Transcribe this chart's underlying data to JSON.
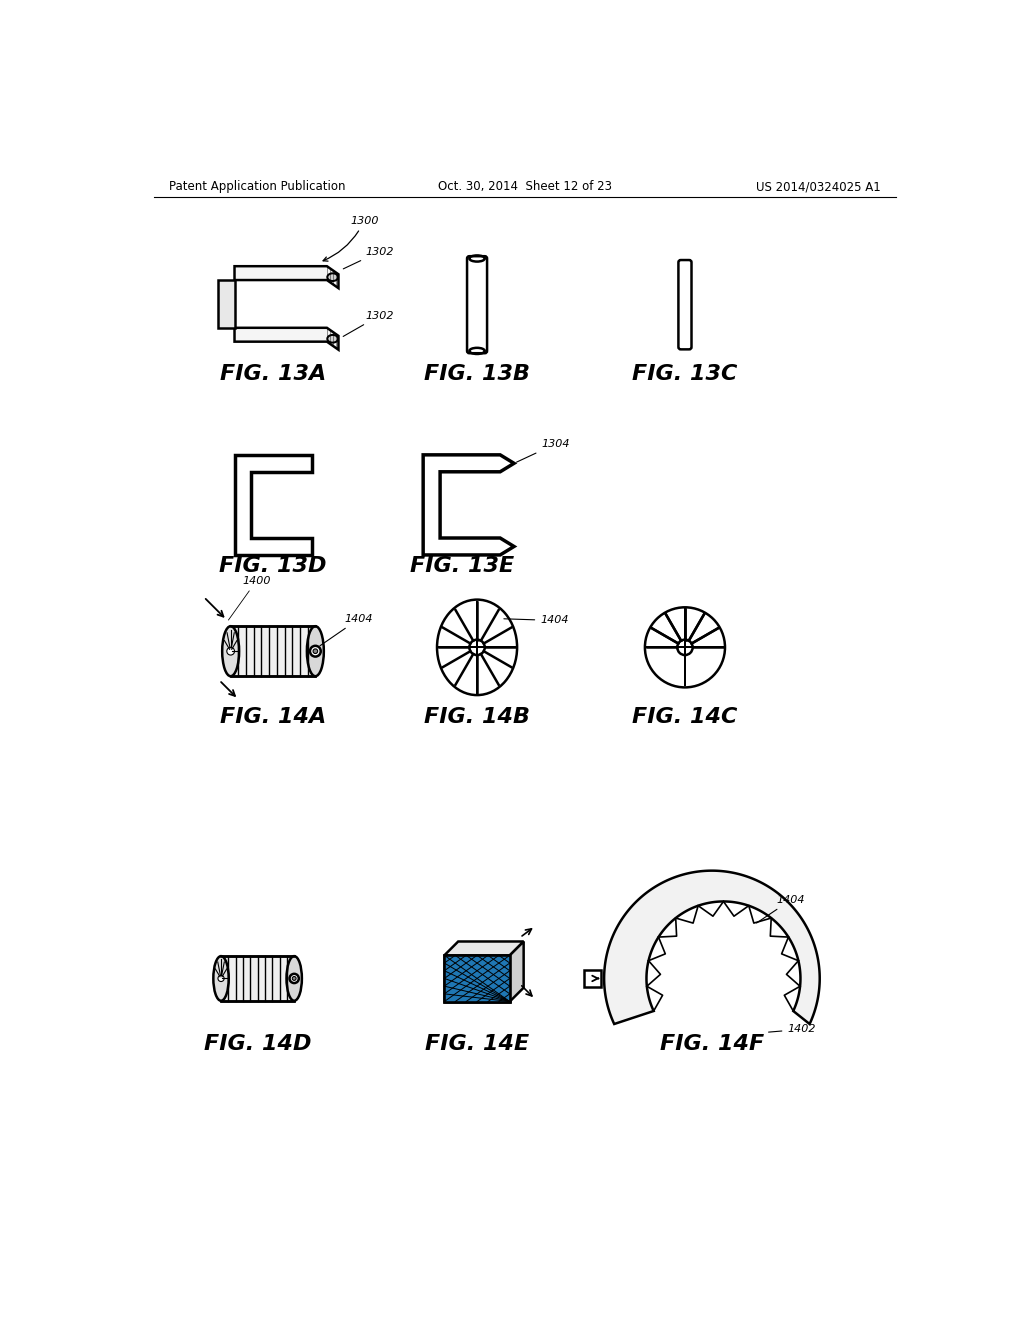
{
  "header_left": "Patent Application Publication",
  "header_mid": "Oct. 30, 2014  Sheet 12 of 23",
  "header_right": "US 2014/0324025 A1",
  "bg_color": "#ffffff",
  "text_color": "#000000"
}
